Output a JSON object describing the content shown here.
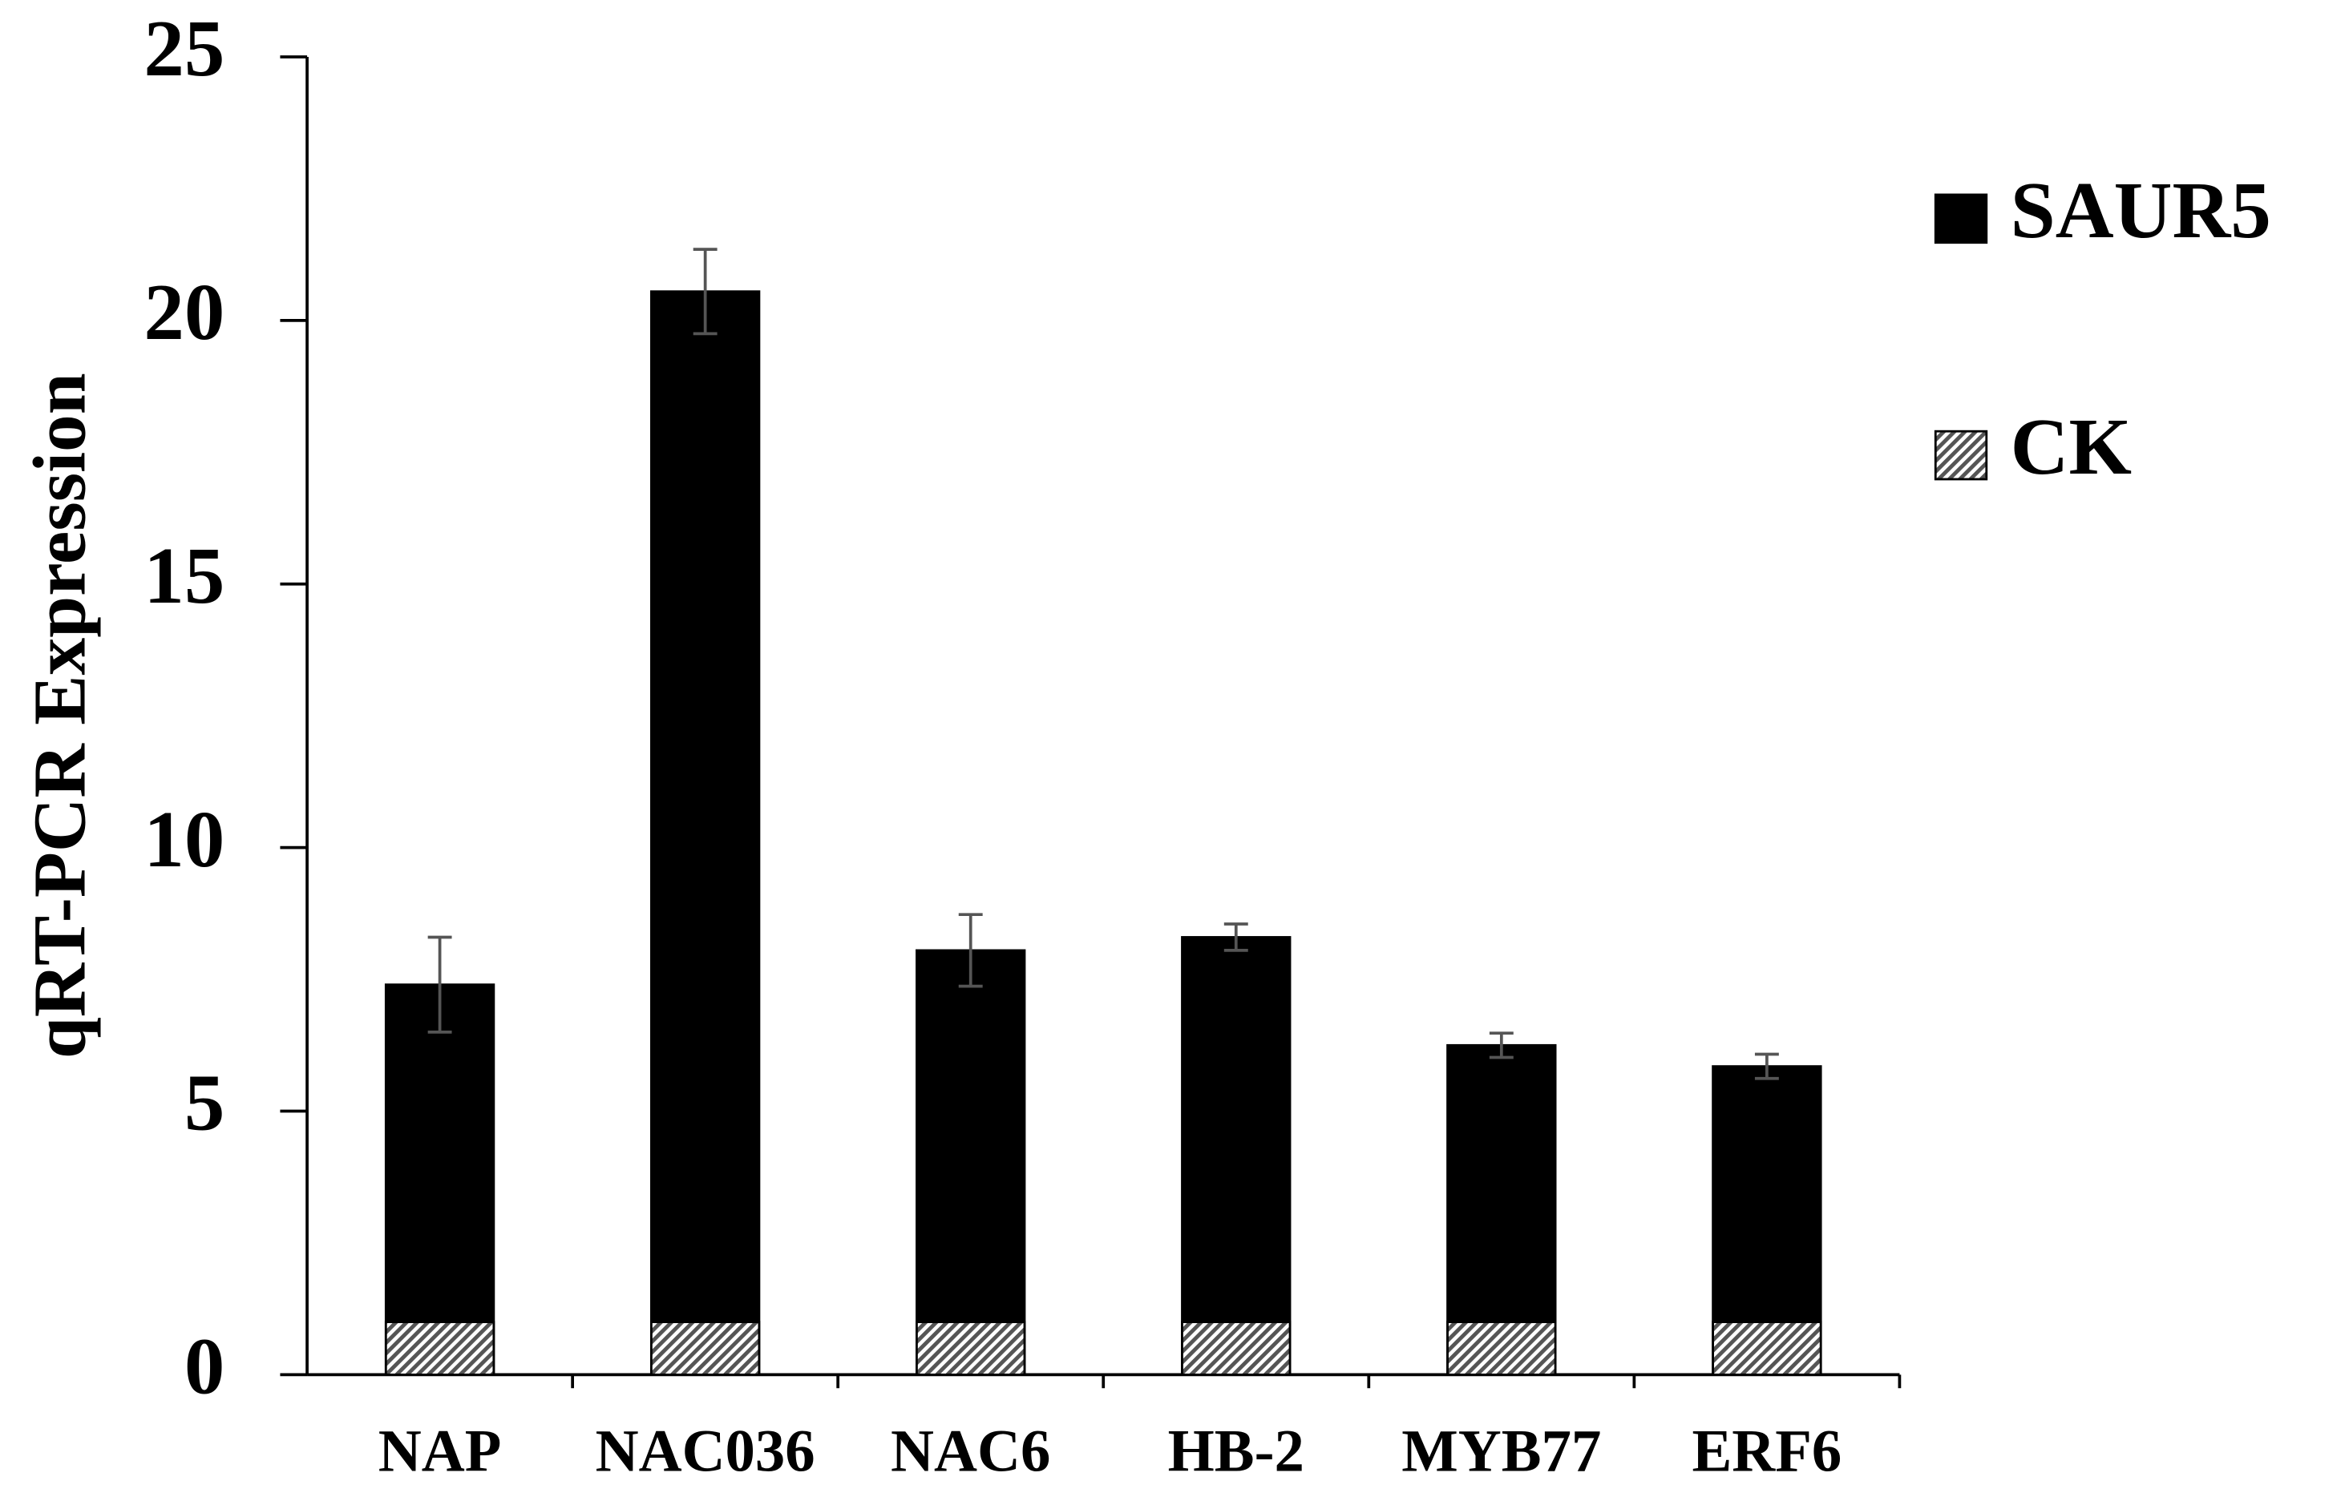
{
  "chart_data": {
    "type": "bar",
    "y_label": "qRT-PCR Expression",
    "categories": [
      "NAP",
      "NAC036",
      "NAC6",
      "HB-2",
      "MYB77",
      "ERF6"
    ],
    "series": [
      {
        "name": "SAUR5",
        "color": "#000000",
        "values": [
          7.4,
          20.55,
          8.05,
          8.3,
          6.25,
          5.85
        ],
        "errors": [
          0.9,
          0.8,
          0.68,
          0.25,
          0.23,
          0.23
        ]
      },
      {
        "name": "CK",
        "color": "#9a9a9a",
        "hatch": true,
        "values": [
          1,
          1,
          1,
          1,
          1,
          1
        ]
      }
    ],
    "ylim": [
      0,
      25
    ],
    "yticks": [
      0,
      5,
      10,
      15,
      20,
      25
    ],
    "legend": "upper right"
  }
}
